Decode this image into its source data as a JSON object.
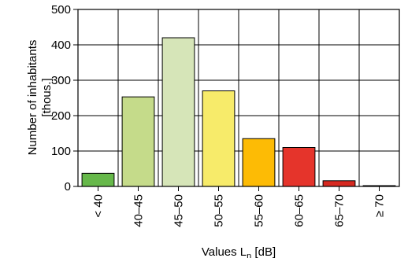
{
  "chart_data": {
    "type": "bar",
    "categories": [
      "< 40",
      "40–45",
      "45–50",
      "50–55",
      "55–60",
      "60–65",
      "65–70",
      "≥ 70"
    ],
    "values": [
      37,
      253,
      420,
      270,
      135,
      110,
      16,
      2
    ],
    "colors": [
      "#66b84a",
      "#c5db8a",
      "#d6e5b8",
      "#f7eb6a",
      "#fdbb05",
      "#e5342b",
      "#d62920",
      "#8b2018"
    ],
    "ylim": [
      0,
      500
    ],
    "yticks": [
      0,
      100,
      200,
      300,
      400,
      500
    ],
    "grid": true,
    "ylabel_line1": "Number of inhabitants",
    "ylabel_line2": "[thous.]",
    "xlabel_main": "Values L",
    "xlabel_sub": "n",
    "xlabel_unit": " [dB]"
  }
}
